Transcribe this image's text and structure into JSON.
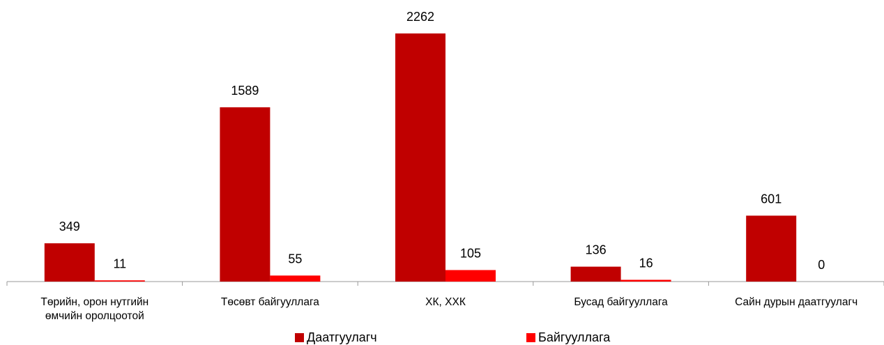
{
  "chart_data": {
    "type": "bar",
    "categories": [
      "Төрийн, орон нутгийн\nөмчийн  оролцоотой",
      "Төсөвт байгууллага",
      "ХК, ХХК",
      "Бусад байгууллага",
      "Сайн дурын даатгуулагч"
    ],
    "series": [
      {
        "name": "Даатгуулагч",
        "color": "#c00000",
        "values": [
          349,
          1589,
          2262,
          136,
          601
        ]
      },
      {
        "name": "Байгууллага",
        "color": "#ff0000",
        "values": [
          11,
          55,
          105,
          16,
          0
        ]
      }
    ],
    "legend": "bottom"
  }
}
